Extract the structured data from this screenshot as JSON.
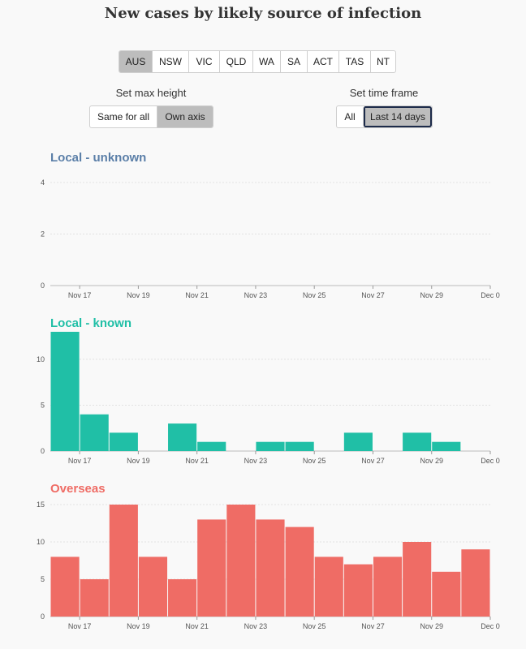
{
  "title": "New cases by likely source of infection",
  "regions": [
    "AUS",
    "NSW",
    "VIC",
    "QLD",
    "WA",
    "SA",
    "ACT",
    "TAS",
    "NT"
  ],
  "active_region": "AUS",
  "max_height": {
    "label": "Set max height",
    "options": [
      "Same for all",
      "Own axis"
    ],
    "active": "Own axis"
  },
  "time_frame": {
    "label": "Set time frame",
    "options": [
      "All",
      "Last 14 days"
    ],
    "active": "Last 14 days"
  },
  "chart_data": [
    {
      "type": "bar",
      "title": "Local - unknown",
      "color": "#5b7fa8",
      "bar_color": "#5b7fa8",
      "categories": [
        "Nov 16",
        "Nov 17",
        "Nov 18",
        "Nov 19",
        "Nov 20",
        "Nov 21",
        "Nov 22",
        "Nov 23",
        "Nov 24",
        "Nov 25",
        "Nov 26",
        "Nov 27",
        "Nov 28",
        "Nov 29",
        "Nov 30"
      ],
      "values": [
        0,
        0,
        0,
        0,
        0,
        0,
        0,
        0,
        0,
        0,
        0,
        0,
        0,
        0,
        0
      ],
      "xticks": [
        "Nov 17",
        "Nov 19",
        "Nov 21",
        "Nov 23",
        "Nov 25",
        "Nov 27",
        "Nov 29",
        "Dec 0"
      ],
      "yticks": [
        0,
        2,
        4
      ],
      "ylim": [
        0,
        4
      ]
    },
    {
      "type": "bar",
      "title": "Local - known",
      "color": "#20bfa6",
      "bar_color": "#20bfa6",
      "categories": [
        "Nov 16",
        "Nov 17",
        "Nov 18",
        "Nov 19",
        "Nov 20",
        "Nov 21",
        "Nov 22",
        "Nov 23",
        "Nov 24",
        "Nov 25",
        "Nov 26",
        "Nov 27",
        "Nov 28",
        "Nov 29",
        "Nov 30"
      ],
      "values": [
        13,
        4,
        2,
        0,
        3,
        1,
        0,
        1,
        1,
        0,
        2,
        0,
        2,
        1,
        0
      ],
      "xticks": [
        "Nov 17",
        "Nov 19",
        "Nov 21",
        "Nov 23",
        "Nov 25",
        "Nov 27",
        "Nov 29",
        "Dec 0"
      ],
      "yticks": [
        0,
        5,
        10
      ],
      "ylim": [
        0,
        13
      ]
    },
    {
      "type": "bar",
      "title": "Overseas",
      "color": "#ef6c65",
      "bar_color": "#ef6c65",
      "categories": [
        "Nov 16",
        "Nov 17",
        "Nov 18",
        "Nov 19",
        "Nov 20",
        "Nov 21",
        "Nov 22",
        "Nov 23",
        "Nov 24",
        "Nov 25",
        "Nov 26",
        "Nov 27",
        "Nov 28",
        "Nov 29",
        "Nov 30"
      ],
      "values": [
        8,
        5,
        15,
        8,
        5,
        13,
        15,
        13,
        12,
        8,
        7,
        8,
        10,
        6,
        9
      ],
      "xticks": [
        "Nov 17",
        "Nov 19",
        "Nov 21",
        "Nov 23",
        "Nov 25",
        "Nov 27",
        "Nov 29",
        "Dec 0"
      ],
      "yticks": [
        0,
        5,
        10,
        15
      ],
      "ylim": [
        0,
        15
      ]
    }
  ]
}
